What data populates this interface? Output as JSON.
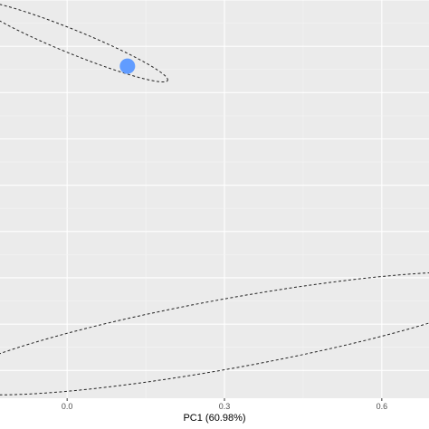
{
  "chart_data": {
    "type": "scatter",
    "xlabel": "PC1 (60.98%)",
    "ylabel": "",
    "x_ticks": [
      0.0,
      0.3,
      0.6
    ],
    "x_tick_labels": [
      "0.0",
      "0.3",
      "0.6"
    ],
    "xlim": [
      -0.128,
      0.69
    ],
    "ylim": [
      -0.36,
      0.5
    ],
    "grid": true,
    "legend": "none",
    "colors": {
      "panel_background": "#ebebeb",
      "grid_major": "#ffffff",
      "grid_minor": "#f5f5f5",
      "point": "#619cff",
      "ellipse": "#222222"
    },
    "points": [
      {
        "x": 0.115,
        "y": 0.357,
        "color": "#619cff"
      }
    ],
    "ellipses": [
      {
        "cx": 0.01,
        "cy": 0.41,
        "rx": 0.2,
        "ry": 0.025,
        "angle_deg": -24.8,
        "style": "dashed"
      },
      {
        "cx": 0.31,
        "cy": -0.22,
        "rx": 0.55,
        "ry": 0.075,
        "angle_deg": 11.6,
        "style": "dashed"
      }
    ]
  }
}
